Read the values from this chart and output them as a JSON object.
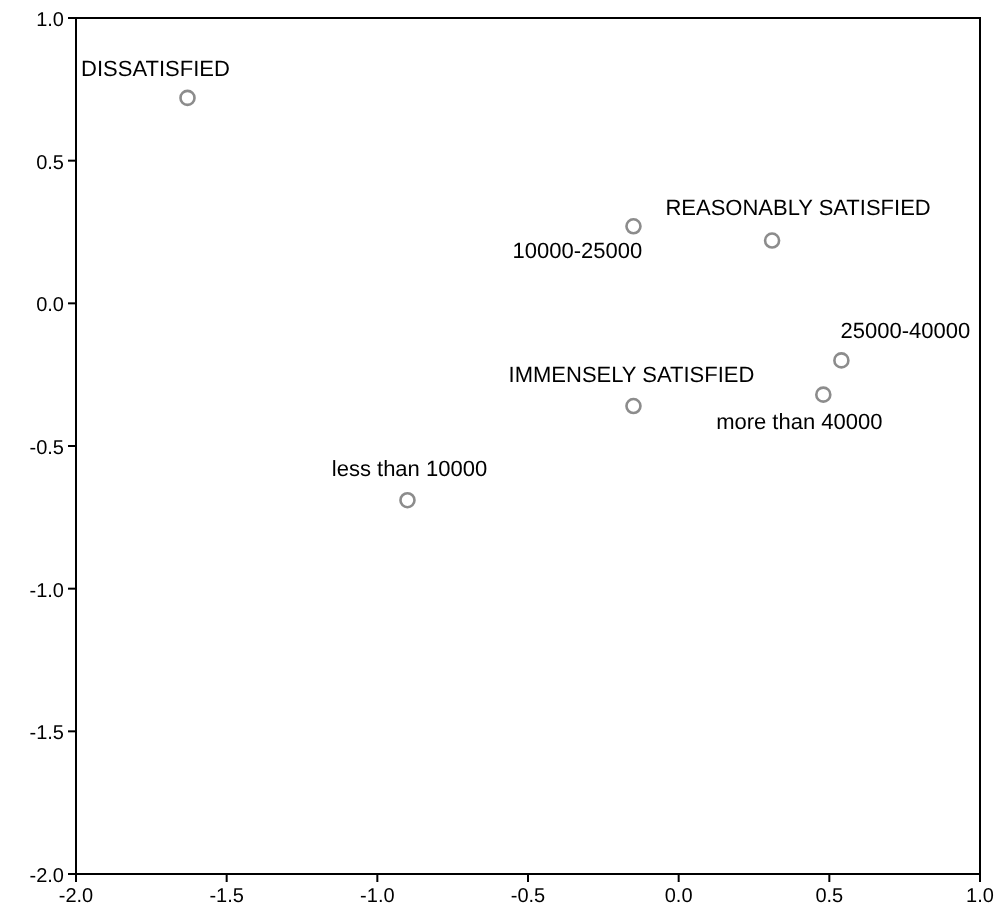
{
  "chart_data": {
    "type": "scatter",
    "x": [
      -1.63,
      -0.15,
      0.31,
      0.54,
      0.48,
      -0.15,
      -0.9
    ],
    "values": [
      0.72,
      0.27,
      0.22,
      -0.2,
      -0.32,
      -0.36,
      -0.69
    ],
    "color": "#8c8c8c",
    "marker": "circle",
    "xlim": [
      -2,
      1
    ],
    "ylim": [
      -2,
      1
    ],
    "xticks": [
      {
        "value": -2,
        "label": "-2.0"
      },
      {
        "value": -1.5,
        "label": "-1.5"
      },
      {
        "value": -1,
        "label": "-1.0"
      },
      {
        "value": -0.5,
        "label": "-0.5"
      },
      {
        "value": 0,
        "label": "0.0"
      },
      {
        "value": 0.5,
        "label": "0.5"
      },
      {
        "value": 1,
        "label": "1.0"
      }
    ],
    "yticks": [
      {
        "value": -2,
        "label": "-2.0"
      },
      {
        "value": -1.5,
        "label": "-1.5"
      },
      {
        "value": -1,
        "label": "-1.0"
      },
      {
        "value": -0.5,
        "label": "-0.5"
      },
      {
        "value": 0,
        "label": "0.0"
      },
      {
        "value": 0.5,
        "label": "0.5"
      },
      {
        "value": 1,
        "label": "1.0"
      }
    ],
    "grid": false,
    "annotations": [
      {
        "text": "DISSATISFIED",
        "x": -1.63,
        "y": 0.72
      },
      {
        "text": "10000-25000",
        "x": -0.15,
        "y": 0.27
      },
      {
        "text": "REASONABLY SATISFIED",
        "x": 0.31,
        "y": 0.22
      },
      {
        "text": "25000-40000",
        "x": 0.54,
        "y": -0.2
      },
      {
        "text": "more than 40000",
        "x": 0.48,
        "y": -0.32
      },
      {
        "text": "IMMENSELY SATISFIED",
        "x": -0.15,
        "y": -0.36
      },
      {
        "text": "less than 10000",
        "x": -0.9,
        "y": -0.69
      }
    ]
  }
}
